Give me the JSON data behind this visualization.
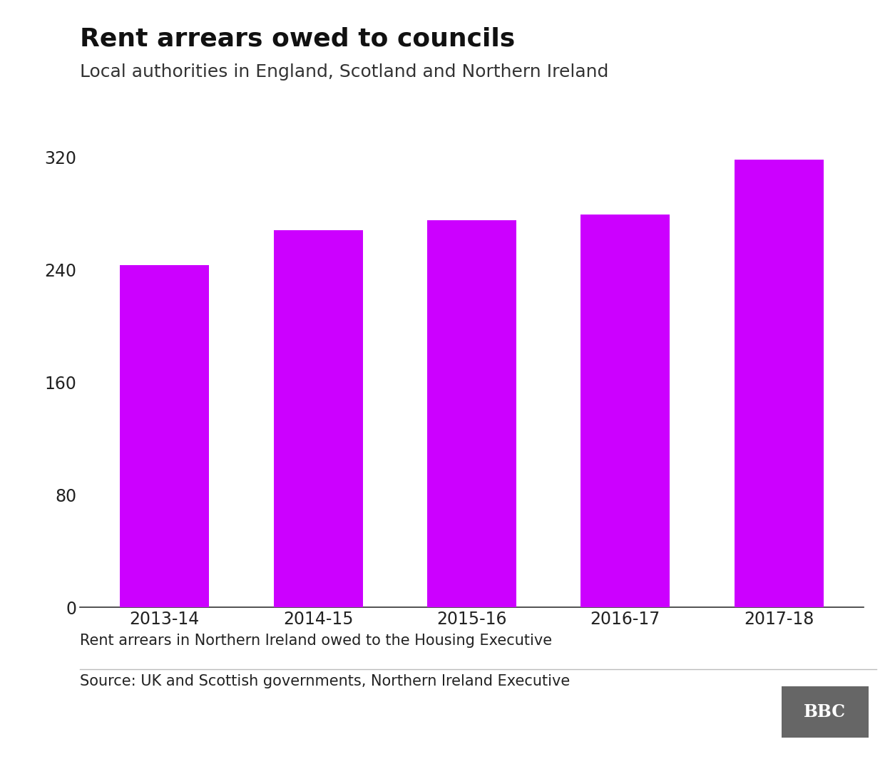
{
  "title": "Rent arrears owed to councils",
  "subtitle": "Local authorities in England, Scotland and Northern Ireland",
  "categories": [
    "2013-14",
    "2014-15",
    "2015-16",
    "2016-17",
    "2017-18"
  ],
  "values": [
    243,
    268,
    275,
    279,
    318
  ],
  "bar_color": "#cc00ff",
  "background_color": "#ffffff",
  "yticks": [
    0,
    80,
    160,
    240,
    320
  ],
  "ylim": [
    0,
    340
  ],
  "footnote1": "Rent arrears in Northern Ireland owed to the Housing Executive",
  "source_text": "Source: UK and Scottish governments, Northern Ireland Executive",
  "title_fontsize": 26,
  "subtitle_fontsize": 18,
  "tick_fontsize": 17,
  "footnote_fontsize": 15,
  "bar_width": 0.58
}
